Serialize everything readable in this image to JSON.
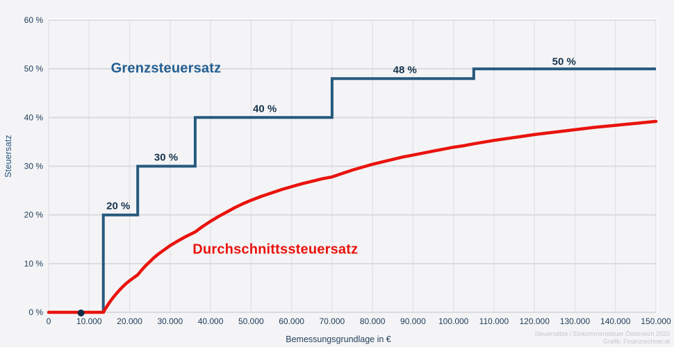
{
  "footer": {
    "line1": "Steuersätze / Einkommensteuer Österreich 2020",
    "line2": "Grafik: Finanzrechner.at"
  },
  "chart_data": {
    "type": "line",
    "title": "",
    "xlabel": "Bemessungsgrundlage in €",
    "ylabel": "Steuersatz",
    "xlim": [
      0,
      150000
    ],
    "ylim": [
      0,
      60
    ],
    "grid": true,
    "legend_position": "inline-labels",
    "x_tick_values": [
      0,
      10000,
      20000,
      30000,
      40000,
      50000,
      60000,
      70000,
      80000,
      90000,
      100000,
      110000,
      120000,
      130000,
      140000,
      150000
    ],
    "x_tick_labels": [
      "0",
      "10.000",
      "20.000",
      "30.000",
      "40.000",
      "50.000",
      "60.000",
      "70.000",
      "80.000",
      "90.000",
      "100.000",
      "110.000",
      "120.000",
      "130.000",
      "140.000",
      "150.000"
    ],
    "y_tick_values": [
      0,
      10,
      20,
      30,
      40,
      50,
      60
    ],
    "y_tick_labels": [
      "0 %",
      "10 %",
      "20 %",
      "30 %",
      "40 %",
      "50 %",
      "60 %"
    ],
    "colors": {
      "background": "#f4f4f6",
      "grid_vertical": "#e3e4e7",
      "grid_horizontal": "#d9dbdf",
      "frame": "#fafbfc",
      "tick_text": "#1d3a57",
      "axis_title": "#25425f",
      "step_label_text": "#14324c",
      "marginal_line": "#26597d",
      "average_line": "#e9130d",
      "title_blue": "#235e91"
    },
    "series": [
      {
        "name": "Grenzsteuersatz",
        "type": "step",
        "color": "#26597d",
        "label_anchor": {
          "x": 29000,
          "y": 50
        },
        "points": [
          [
            0,
            0
          ],
          [
            13500,
            0
          ],
          [
            13500,
            20
          ],
          [
            22000,
            20
          ],
          [
            22000,
            30
          ],
          [
            36200,
            30
          ],
          [
            36200,
            40
          ],
          [
            70000,
            40
          ],
          [
            70000,
            48
          ],
          [
            105000,
            48
          ],
          [
            105000,
            50
          ],
          [
            150000,
            50
          ]
        ]
      },
      {
        "name": "Durchschnittssteuersatz",
        "type": "line",
        "color": "#e9130d",
        "label_anchor": {
          "x": 56000,
          "y": 12.8
        },
        "points": [
          [
            0,
            0
          ],
          [
            5000,
            0
          ],
          [
            10000,
            0
          ],
          [
            13500,
            0
          ],
          [
            14000,
            0.7
          ],
          [
            15000,
            2.0
          ],
          [
            16000,
            3.1
          ],
          [
            17000,
            4.1
          ],
          [
            18000,
            5.0
          ],
          [
            19000,
            5.8
          ],
          [
            20000,
            6.5
          ],
          [
            21000,
            7.1
          ],
          [
            22000,
            7.7
          ],
          [
            23000,
            8.7
          ],
          [
            24000,
            9.6
          ],
          [
            25000,
            10.4
          ],
          [
            26000,
            11.2
          ],
          [
            27000,
            11.9
          ],
          [
            28000,
            12.5
          ],
          [
            29000,
            13.1
          ],
          [
            30000,
            13.7
          ],
          [
            32000,
            14.7
          ],
          [
            34000,
            15.6
          ],
          [
            36200,
            16.5
          ],
          [
            38000,
            17.6
          ],
          [
            40000,
            18.7
          ],
          [
            42000,
            19.7
          ],
          [
            44000,
            20.6
          ],
          [
            46000,
            21.5
          ],
          [
            48000,
            22.3
          ],
          [
            50000,
            23.0
          ],
          [
            52500,
            23.8
          ],
          [
            55000,
            24.5
          ],
          [
            57500,
            25.2
          ],
          [
            60000,
            25.8
          ],
          [
            62500,
            26.4
          ],
          [
            65000,
            26.9
          ],
          [
            67500,
            27.4
          ],
          [
            70000,
            27.8
          ],
          [
            72500,
            28.5
          ],
          [
            75000,
            29.2
          ],
          [
            77500,
            29.8
          ],
          [
            80000,
            30.4
          ],
          [
            82500,
            30.9
          ],
          [
            85000,
            31.4
          ],
          [
            87500,
            31.9
          ],
          [
            90000,
            32.3
          ],
          [
            92500,
            32.7
          ],
          [
            95000,
            33.1
          ],
          [
            97500,
            33.5
          ],
          [
            100000,
            33.9
          ],
          [
            102500,
            34.2
          ],
          [
            105000,
            34.6
          ],
          [
            110000,
            35.3
          ],
          [
            115000,
            35.9
          ],
          [
            120000,
            36.5
          ],
          [
            125000,
            37.0
          ],
          [
            130000,
            37.5
          ],
          [
            135000,
            38.0
          ],
          [
            140000,
            38.4
          ],
          [
            145000,
            38.8
          ],
          [
            150000,
            39.2
          ]
        ]
      }
    ],
    "step_labels": [
      {
        "label": "20 %",
        "x": 17200,
        "y": 21.8
      },
      {
        "label": "30 %",
        "x": 29000,
        "y": 31.8
      },
      {
        "label": "40 %",
        "x": 53400,
        "y": 41.8
      },
      {
        "label": "48 %",
        "x": 88000,
        "y": 49.7
      },
      {
        "label": "50 %",
        "x": 127300,
        "y": 51.5
      }
    ],
    "marker_point": {
      "x": 8000,
      "y": 0,
      "color": "#132e48"
    }
  }
}
